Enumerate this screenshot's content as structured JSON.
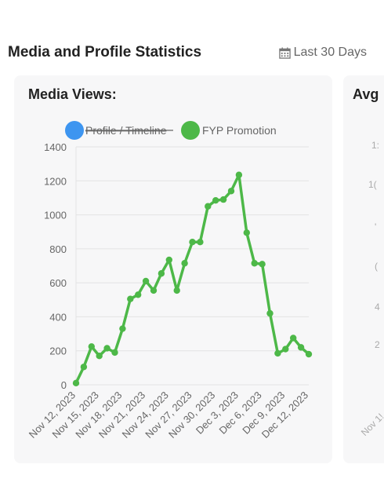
{
  "header": {
    "title": "Media and Profile Statistics",
    "range_label": "Last 30 Days"
  },
  "card": {
    "title": "Media Views:"
  },
  "card2": {
    "title": "Avg",
    "ghost_ticks": [
      "1:",
      "1(",
      "'",
      "(",
      "4",
      "2",
      "Nov 1!"
    ]
  },
  "colors": {
    "profile": "#3d95f0",
    "fyp": "#4db848",
    "grid": "#e3e3e3",
    "tick": "#666666"
  },
  "chart_data": {
    "type": "line",
    "title": "Media Views:",
    "ylim": [
      0,
      1400
    ],
    "yticks": [
      0,
      200,
      400,
      600,
      800,
      1000,
      1200,
      1400
    ],
    "grid": true,
    "legend_position": "top",
    "x_labels": [
      "Nov 12, 2023",
      "Nov 15, 2023",
      "Nov 18, 2023",
      "Nov 21, 2023",
      "Nov 24, 2023",
      "Nov 27, 2023",
      "Nov 30, 2023",
      "Dec 3, 2023",
      "Dec 6, 2023",
      "Dec 9, 2023",
      "Dec 12, 2023"
    ],
    "series": [
      {
        "name": "Profile / Timeline",
        "hidden": true,
        "values": []
      },
      {
        "name": "FYP Promotion",
        "hidden": false,
        "values": [
          10,
          105,
          225,
          170,
          215,
          190,
          330,
          505,
          530,
          610,
          555,
          655,
          735,
          555,
          715,
          840,
          840,
          1050,
          1085,
          1090,
          1140,
          1235,
          895,
          715,
          710,
          420,
          185,
          210,
          275,
          220,
          180
        ]
      }
    ]
  }
}
